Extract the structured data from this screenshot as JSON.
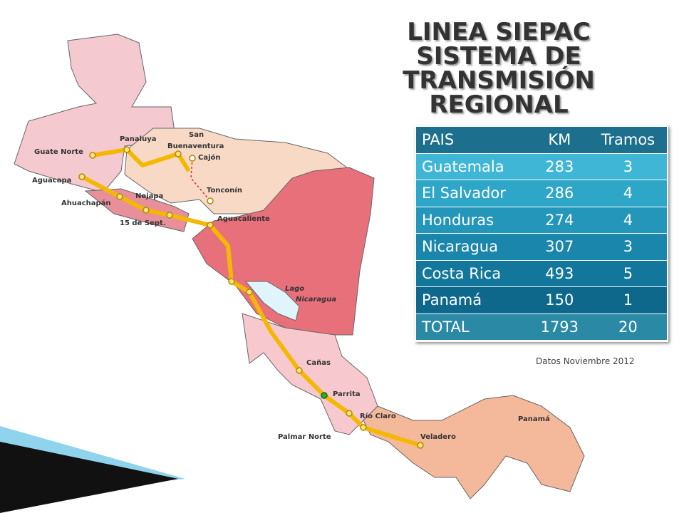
{
  "title": [
    "LINEA SIEPAC",
    "SISTEMA DE",
    "TRANSMISIÓN REGIONAL"
  ],
  "table": {
    "header": [
      "PAIS",
      "KM",
      "Tramos"
    ],
    "rows": [
      [
        "Guatemala",
        283,
        3
      ],
      [
        "El Salvador",
        286,
        4
      ],
      [
        "Honduras",
        274,
        4
      ],
      [
        "Nicaragua",
        307,
        3
      ],
      [
        "Costa Rica",
        493,
        5
      ],
      [
        "Panamá",
        150,
        1
      ],
      [
        "TOTAL",
        1793,
        20
      ]
    ]
  },
  "note": "Datos Noviembre 2012",
  "map": {
    "labels": [
      "Guate Norte",
      "Panaluya",
      "San",
      "Buenaventura",
      "Cajón",
      "Aguacapa",
      "Ahuachapán",
      "Nejapa",
      "15 de Sept.",
      "Tonconín",
      "Aguacaliente",
      "Lago",
      "Nicaragua",
      "Cañas",
      "Parrita",
      "Río Claro",
      "Palmar Norte",
      "Veladero",
      "Panamá"
    ]
  }
}
